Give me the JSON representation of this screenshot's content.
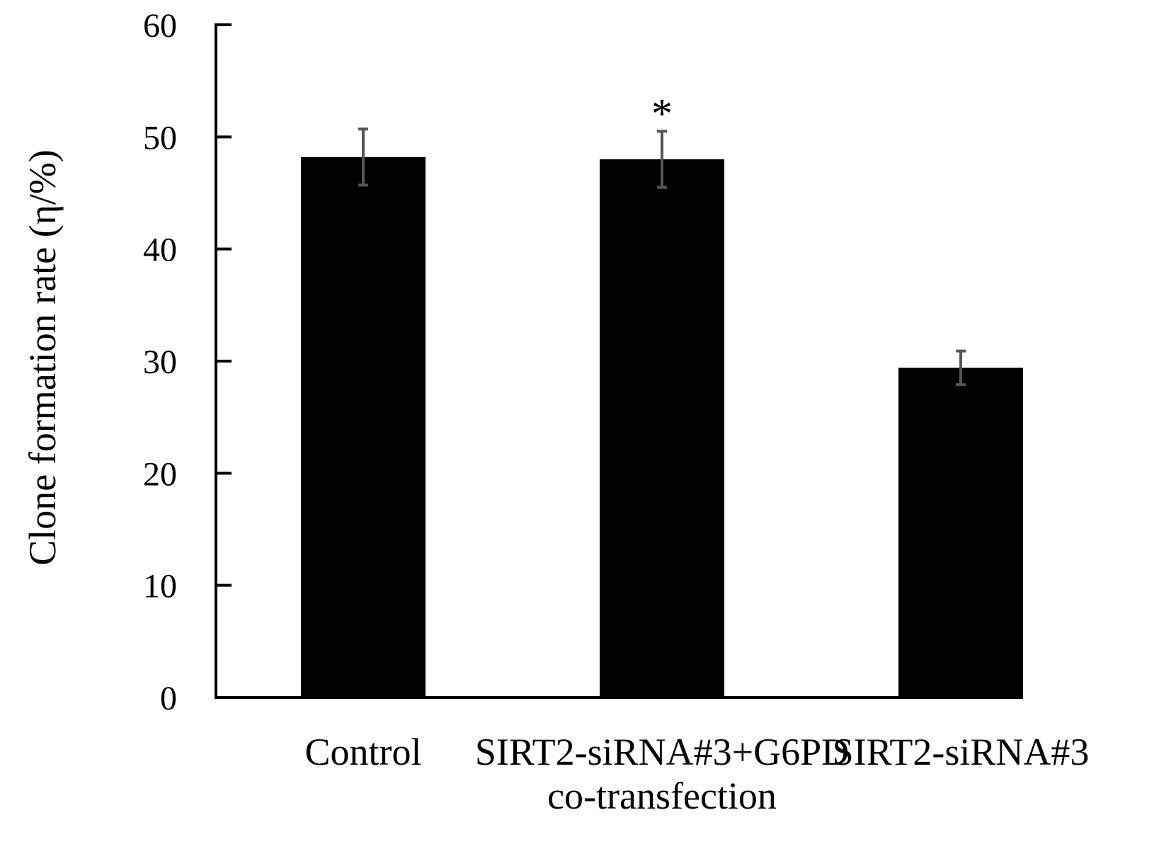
{
  "chart_data": {
    "type": "bar",
    "categories": [
      [
        "Control"
      ],
      [
        "SIRT2-siRNA#3+G6PD",
        "co-transfection"
      ],
      [
        "SIRT2-siRNA#3"
      ]
    ],
    "values": [
      48.2,
      48.0,
      29.4
    ],
    "errors": [
      2.5,
      2.5,
      1.5
    ],
    "annotations": [
      "",
      "*",
      ""
    ],
    "title": "",
    "xlabel": "",
    "ylabel": "Clone formation rate (η/%)",
    "ylim": [
      0,
      60
    ],
    "yticks": [
      0,
      10,
      20,
      30,
      40,
      50,
      60
    ],
    "grid": false,
    "legend": "none",
    "colors": {
      "bar": "#000000",
      "error_bar": "#555555",
      "axis": "#000000"
    }
  }
}
